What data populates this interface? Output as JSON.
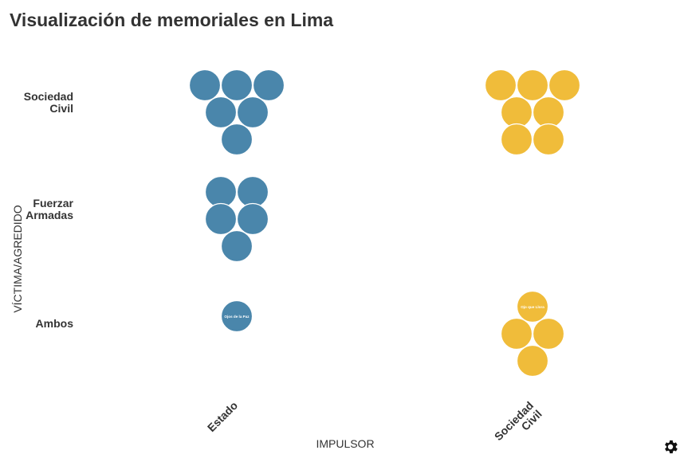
{
  "page": {
    "title": "Visualización de memoriales en Lima"
  },
  "chart_data": {
    "type": "scatter",
    "title": "Visualización de memoriales en Lima",
    "xlabel": "IMPULSOR",
    "ylabel": "VÍCTIMA/AGREDIDO",
    "x_categories": [
      "Estado",
      "Sociedad Civil"
    ],
    "y_categories": [
      "Sociedad Civil",
      "Fuerzar Armadas",
      "Ambos"
    ],
    "colors": {
      "Estado": "#4a86ab",
      "Sociedad Civil": "#f0bc3a"
    },
    "grid": false,
    "cells": [
      {
        "x": "Estado",
        "y": "Sociedad Civil",
        "count": 6
      },
      {
        "x": "Estado",
        "y": "Fuerzar Armadas",
        "count": 5
      },
      {
        "x": "Estado",
        "y": "Ambos",
        "count": 1
      },
      {
        "x": "Sociedad Civil",
        "y": "Sociedad Civil",
        "count": 7
      },
      {
        "x": "Sociedad Civil",
        "y": "Fuerzar Armadas",
        "count": 0
      },
      {
        "x": "Sociedad Civil",
        "y": "Ambos",
        "count": 4
      }
    ],
    "point_labels": {
      "Estado|Ambos": [
        "Ojos de la Paz"
      ],
      "Sociedad Civil|Ambos": [
        "Ojo que Llora"
      ]
    }
  },
  "icons": {
    "settings": "gear-icon"
  }
}
